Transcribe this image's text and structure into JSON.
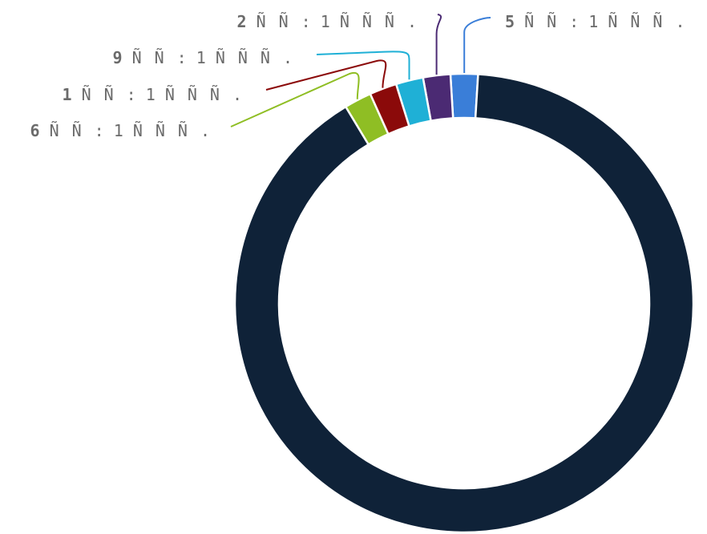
{
  "chart_data": {
    "type": "pie",
    "variant": "donut",
    "title": "",
    "legend": "none",
    "slices": [
      {
        "label": "5 ÑÑ: 1 ÑÑÑ.",
        "num": "5",
        "rest": " ÑÑ: 1 ÑÑÑ.",
        "value": 1,
        "color": "#3a7ed8"
      },
      {
        "label": "2 ÑÑ: 1 ÑÑÑ.",
        "num": "2",
        "rest": " ÑÑ: 1 ÑÑÑ.",
        "value": 1,
        "color": "#4b2a73"
      },
      {
        "label": "9 ÑÑ: 1 ÑÑÑ.",
        "num": "9",
        "rest": " ÑÑ: 1 ÑÑÑ.",
        "value": 1,
        "color": "#1fb0d6"
      },
      {
        "label": "1 ÑÑ: 1 ÑÑÑ.",
        "num": "1",
        "rest": " ÑÑ: 1 ÑÑÑ.",
        "value": 1,
        "color": "#8b0a0a"
      },
      {
        "label": "6 ÑÑ: 1 ÑÑÑ.",
        "num": "6",
        "rest": " ÑÑ: 1 ÑÑÑ.",
        "value": 1,
        "color": "#8fbe24"
      },
      {
        "label": "",
        "num": "",
        "rest": "",
        "value": 47,
        "color": "#0f2238"
      }
    ]
  }
}
